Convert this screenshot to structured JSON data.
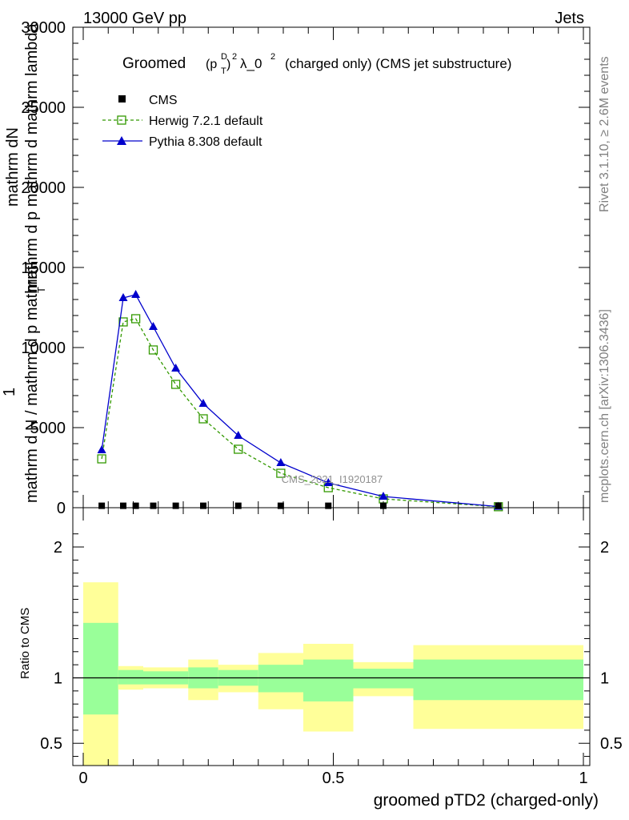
{
  "header": {
    "left": "13000 GeV pp",
    "right": "Jets"
  },
  "title": {
    "main": "Groomed",
    "p": "(p",
    "sup_d": "D",
    "sub_t": "T",
    "close": ")",
    "sup2": "2",
    "lam": "λ_0",
    "sup2b": "2",
    "rest": "(charged only) (CMS jet substructure)"
  },
  "side_labels": {
    "rivet": "Rivet 3.1.10, ≥ 2.6M events",
    "mcplots": "mcplots.cern.ch [arXiv:1306.3436]"
  },
  "watermark": "CMS_2021_I1920187",
  "ylabel_main": {
    "l1": "mathrm dN",
    "l2": "mathrm d p mathrm d  mathrm lambda",
    "l3": "1",
    "l4": "mathrm d N / mathrm d p mathrm",
    "sub_t": "T",
    "l2b": "T"
  },
  "ylabel_ratio": "Ratio to CMS",
  "xlabel": "groomed pTD2 (charged-only)",
  "colors": {
    "cms": "#000000",
    "herwig": "#339900",
    "pythia": "#0000cc",
    "band_outer": "#ffff99",
    "band_inner": "#99ff99"
  },
  "chart_data": [
    {
      "type": "line",
      "panel": "main",
      "xlim": [
        0,
        1
      ],
      "ylim": [
        0,
        30000
      ],
      "y_ticks": [
        "0",
        "5000",
        "10000",
        "15000",
        "20000",
        "25000",
        "30000"
      ],
      "legend": [
        "CMS",
        "Herwig 7.2.1 default",
        "Pythia 8.308 default"
      ],
      "legend_placement": "top-left",
      "series": [
        {
          "name": "CMS",
          "x": [
            0.037,
            0.08,
            0.105,
            0.14,
            0.185,
            0.24,
            0.31,
            0.395,
            0.49,
            0.6,
            0.83
          ],
          "y": [
            20,
            20,
            20,
            20,
            20,
            20,
            20,
            20,
            20,
            20,
            20
          ]
        },
        {
          "name": "Herwig 7.2.1 default",
          "x": [
            0.037,
            0.08,
            0.105,
            0.14,
            0.185,
            0.24,
            0.31,
            0.395,
            0.49,
            0.6,
            0.83
          ],
          "y": [
            3050,
            11600,
            11800,
            9850,
            7700,
            5550,
            3650,
            2150,
            1250,
            550,
            60
          ]
        },
        {
          "name": "Pythia 8.308 default",
          "x": [
            0.037,
            0.08,
            0.105,
            0.14,
            0.185,
            0.24,
            0.31,
            0.395,
            0.49,
            0.6,
            0.83
          ],
          "y": [
            3600,
            13100,
            13300,
            11300,
            8700,
            6500,
            4500,
            2800,
            1550,
            700,
            70
          ]
        }
      ]
    },
    {
      "type": "area",
      "panel": "ratio",
      "xlim": [
        0,
        1
      ],
      "ylim": [
        0.33,
        2.3
      ],
      "x_ticks": [
        "0",
        "0.5",
        "1"
      ],
      "y_ticks": [
        "0.5",
        "1",
        "2"
      ],
      "bins": [
        {
          "x0": 0.0,
          "x1": 0.07,
          "outer": [
            0.33,
            1.73
          ],
          "inner": [
            0.72,
            1.42
          ]
        },
        {
          "x0": 0.07,
          "x1": 0.12,
          "outer": [
            0.91,
            1.09
          ],
          "inner": [
            0.95,
            1.06
          ]
        },
        {
          "x0": 0.12,
          "x1": 0.21,
          "outer": [
            0.92,
            1.08
          ],
          "inner": [
            0.95,
            1.05
          ]
        },
        {
          "x0": 0.21,
          "x1": 0.27,
          "outer": [
            0.83,
            1.14
          ],
          "inner": [
            0.92,
            1.08
          ]
        },
        {
          "x0": 0.27,
          "x1": 0.35,
          "outer": [
            0.89,
            1.1
          ],
          "inner": [
            0.94,
            1.06
          ]
        },
        {
          "x0": 0.35,
          "x1": 0.44,
          "outer": [
            0.76,
            1.19
          ],
          "inner": [
            0.89,
            1.1
          ]
        },
        {
          "x0": 0.44,
          "x1": 0.54,
          "outer": [
            0.59,
            1.26
          ],
          "inner": [
            0.82,
            1.14
          ]
        },
        {
          "x0": 0.54,
          "x1": 0.66,
          "outer": [
            0.86,
            1.12
          ],
          "inner": [
            0.92,
            1.07
          ]
        },
        {
          "x0": 0.66,
          "x1": 1.0,
          "outer": [
            0.61,
            1.25
          ],
          "inner": [
            0.83,
            1.14
          ]
        }
      ],
      "reference_line": 1
    }
  ]
}
